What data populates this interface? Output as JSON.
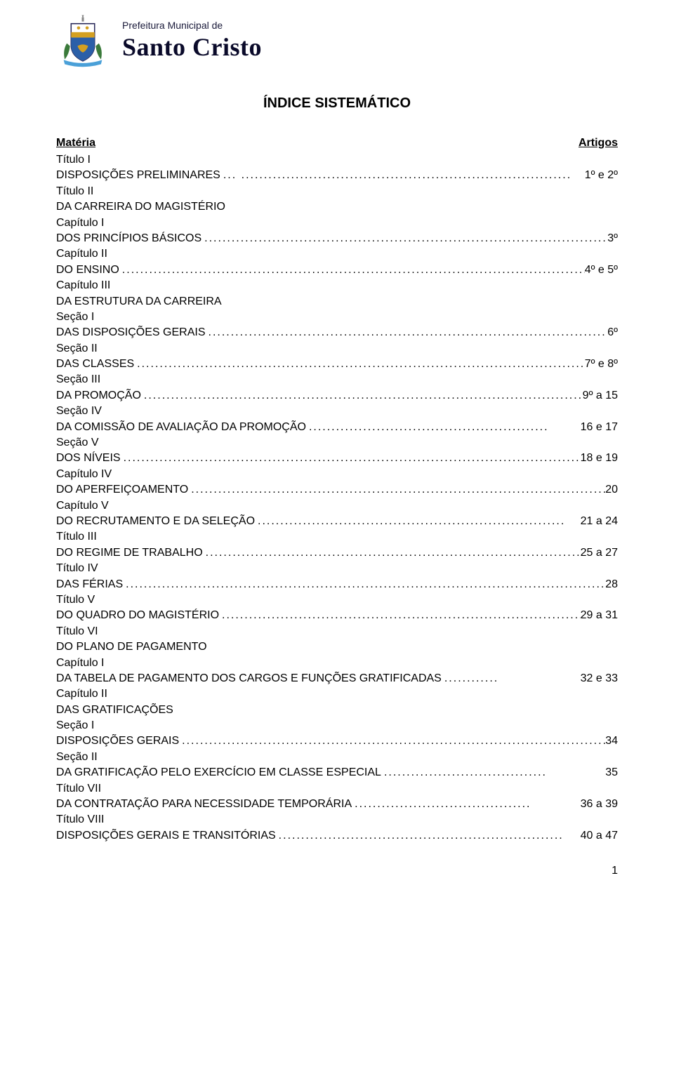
{
  "header": {
    "municipality_label": "Prefeitura Municipal de",
    "city_name": "Santo Cristo",
    "crest_colors": {
      "shield_top": "#ffffff",
      "shield_stripe": "#d4a021",
      "shield_bottom": "#2b5fa8",
      "ribbon": "#4aa0d8",
      "leaves": "#3a7a3a"
    }
  },
  "title": "ÍNDICE SISTEMÁTICO",
  "columns": {
    "left": "Matéria",
    "right": "Artigos"
  },
  "toc": [
    {
      "labels": [
        "Título I"
      ],
      "text": "DISPOSIÇÕES PRELIMINARES",
      "dots": "... .........................................................................",
      "page": "1º e 2º"
    },
    {
      "labels": [
        "Título II",
        "DA CARREIRA DO MAGISTÉRIO",
        "Capítulo I"
      ],
      "text": "DOS PRINCÍPIOS BÁSICOS",
      "dots": "..........................................................................................",
      "page": "3º"
    },
    {
      "labels": [
        "Capítulo II"
      ],
      "text": "DO ENSINO",
      "dots": "..............................................................................................................",
      "page": "4º e 5º"
    },
    {
      "labels": [
        "Capítulo III",
        "DA ESTRUTURA DA CARREIRA",
        "Seção I"
      ],
      "text": "DAS DISPOSIÇÕES GERAIS",
      "dots": "........................................................................................",
      "page": "6º"
    },
    {
      "labels": [
        "Seção II"
      ],
      "text": "DAS CLASSES",
      "dots": "........................................................................................................",
      "page": "7º e 8º"
    },
    {
      "labels": [
        "Seção III"
      ],
      "text": "DA PROMOÇÃO",
      "dots": "....................................................................................................",
      "page": "9º a 15"
    },
    {
      "labels": [
        "Seção IV"
      ],
      "text": "DA COMISSÃO DE AVALIAÇÃO DA PROMOÇÃO",
      "dots": ".....................................................",
      "page": "16 e 17"
    },
    {
      "labels": [
        "Seção V"
      ],
      "text": "DOS NÍVEIS",
      "dots": "............................................................................................................",
      "page": "18 e 19"
    },
    {
      "labels": [
        "Capítulo IV"
      ],
      "text": "DO APERFEIÇOAMENTO",
      "dots": ".............................................................................................",
      "page": "20"
    },
    {
      "labels": [
        "Capítulo V"
      ],
      "text": "DO RECRUTAMENTO E DA SELEÇÃO",
      "dots": "....................................................................",
      "page": "21 a 24"
    },
    {
      "labels": [
        "Título III"
      ],
      "text": "DO REGIME DE TRABALHO",
      "dots": "......................................................................................",
      "page": "25 a 27"
    },
    {
      "labels": [
        "Título IV"
      ],
      "text": "DAS FÉRIAS",
      "dots": ".................................................................................................................",
      "page": "28"
    },
    {
      "labels": [
        "Título V"
      ],
      "text": "DO QUADRO DO MAGISTÉRIO",
      "dots": "................................................................................",
      "page": "29 a 31"
    },
    {
      "labels": [
        "Título VI",
        "DO PLANO DE PAGAMENTO",
        "Capítulo I"
      ],
      "text": "DA TABELA DE PAGAMENTO DOS CARGOS E FUNÇÕES GRATIFICADAS",
      "dots": "............",
      "page": "32 e 33"
    },
    {
      "labels": [
        "Capítulo II",
        "DAS GRATIFICAÇÕES",
        "Seção I"
      ],
      "text": "DISPOSIÇÕES GERAIS",
      "dots": "...............................................................................................",
      "page": "34"
    },
    {
      "labels": [
        "Seção II"
      ],
      "text": "DA GRATIFICAÇÃO PELO EXERCÍCIO EM CLASSE ESPECIAL",
      "dots": "....................................",
      "page": "35"
    },
    {
      "labels": [
        "Título VII"
      ],
      "text": "DA CONTRATAÇÃO PARA NECESSIDADE TEMPORÁRIA",
      "dots": ".......................................",
      "page": "36 a 39"
    },
    {
      "labels": [
        "Título VIII"
      ],
      "text": "DISPOSIÇÕES GERAIS E TRANSITÓRIAS",
      "dots": "...............................................................",
      "page": "40 a 47"
    }
  ],
  "page_number": "1"
}
